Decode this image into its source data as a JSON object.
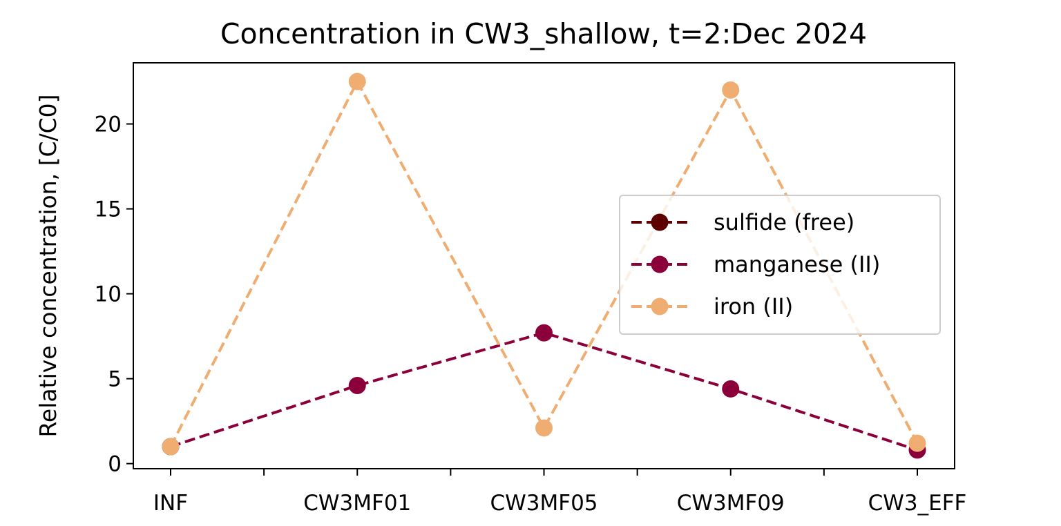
{
  "chart_data": {
    "type": "line",
    "title": "Concentration in CW3_shallow, t=2:Dec 2024",
    "xlabel": "",
    "ylabel": "Relative concentration, [C/C0]",
    "categories": [
      "INF",
      "CW3MF01",
      "CW3MF05",
      "CW3MF09",
      "CW3_EFF"
    ],
    "ylim": [
      -0.3,
      23.6
    ],
    "yticks": [
      0,
      5,
      10,
      15,
      20
    ],
    "grid": false,
    "legend_position": "center-right",
    "series": [
      {
        "name": "sulfide (free)",
        "color": "#5c0000",
        "style": "dashed-marker",
        "values": [
          1.0,
          null,
          null,
          null,
          null
        ]
      },
      {
        "name": "manganese (II)",
        "color": "#8b003a",
        "style": "dashed-marker",
        "values": [
          1.0,
          4.6,
          7.7,
          4.4,
          0.8
        ]
      },
      {
        "name": "iron (II)",
        "color": "#f0ad72",
        "style": "dashed-marker",
        "values": [
          1.0,
          22.5,
          2.1,
          22.0,
          1.2
        ]
      }
    ]
  }
}
